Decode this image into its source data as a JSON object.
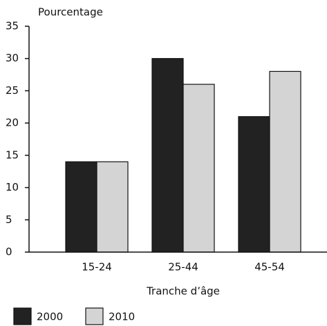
{
  "chart_data": {
    "type": "bar",
    "y_label": "Pourcentage",
    "x_label": "Tranche d’âge",
    "categories": [
      "15-24",
      "25-44",
      "45-54"
    ],
    "series": [
      {
        "name": "2000",
        "color": "#222222",
        "values": [
          14,
          30,
          21
        ]
      },
      {
        "name": "2010",
        "color": "#d4d4d4",
        "values": [
          14,
          26,
          28
        ]
      }
    ],
    "ylim": [
      0,
      35
    ],
    "yticks": [
      0,
      5,
      10,
      15,
      20,
      25,
      30,
      35
    ],
    "grid": false
  }
}
